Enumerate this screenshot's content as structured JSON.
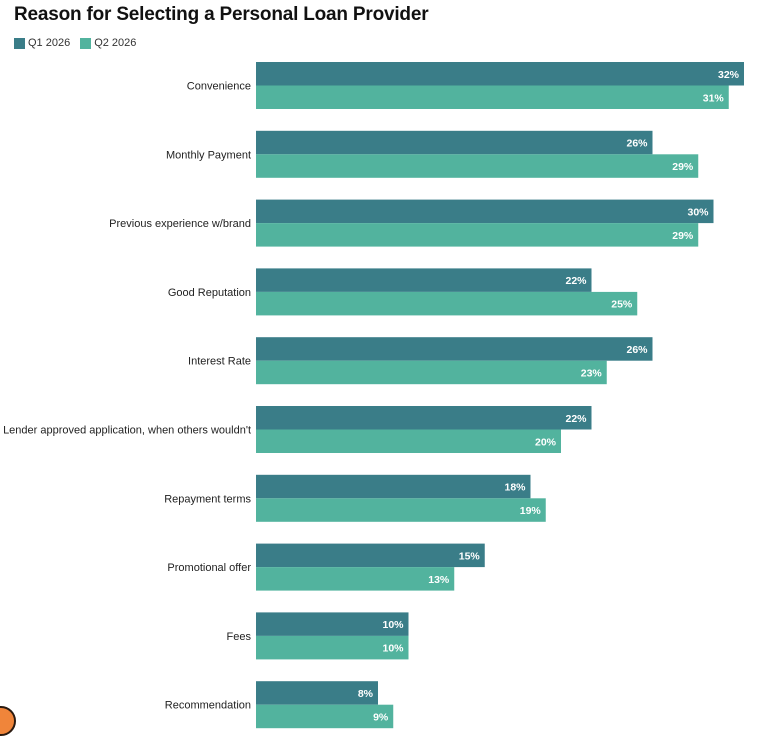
{
  "chart_data": {
    "type": "bar",
    "orientation": "horizontal",
    "title": "Reason for Selecting a Personal Loan Provider",
    "xlabel": "",
    "ylabel": "",
    "xlim": [
      0,
      32
    ],
    "grid": false,
    "legend_position": "top-left",
    "value_suffix": "%",
    "categories": [
      "Convenience",
      "Monthly Payment",
      "Previous experience w/brand",
      "Good Reputation",
      "Interest Rate",
      "Lender approved application, when others wouldn't",
      "Repayment terms",
      "Promotional offer",
      "Fees",
      "Recommendation"
    ],
    "series": [
      {
        "name": "Q1 2026",
        "color": "#3a7d88",
        "values": [
          32,
          26,
          30,
          22,
          26,
          22,
          18,
          15,
          10,
          8
        ]
      },
      {
        "name": "Q2 2026",
        "color": "#52b39e",
        "values": [
          31,
          29,
          29,
          25,
          23,
          20,
          19,
          13,
          10,
          9
        ]
      }
    ]
  }
}
